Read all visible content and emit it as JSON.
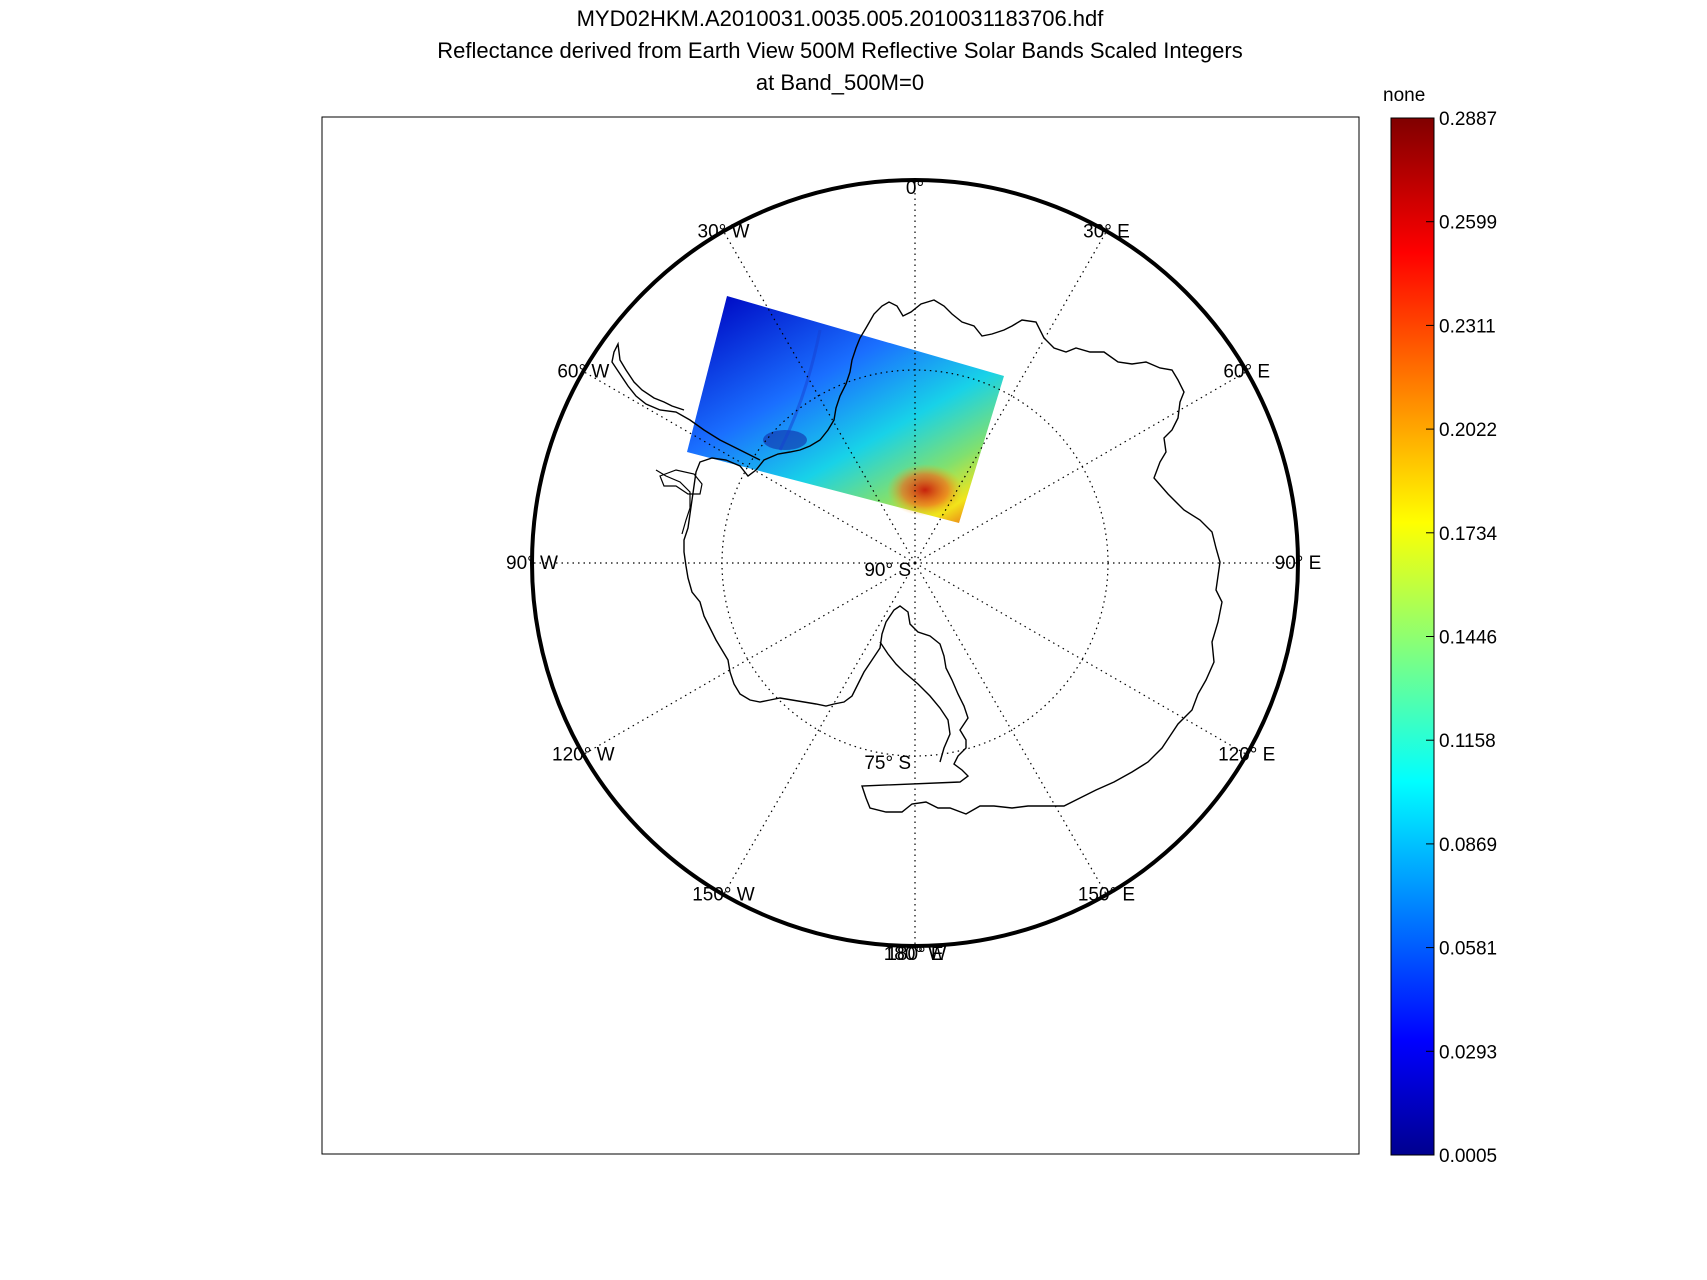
{
  "title": {
    "line1": "MYD02HKM.A2010031.0035.005.2010031183706.hdf",
    "line2": "Reflectance derived from Earth View 500M Reflective Solar Bands Scaled Integers",
    "line3": "at Band_500M=0"
  },
  "map": {
    "projection": "south polar stereographic",
    "meridian_labels": [
      {
        "lon": 0,
        "text": "0°"
      },
      {
        "lon": 30,
        "text": "30° E"
      },
      {
        "lon": 60,
        "text": "60° E"
      },
      {
        "lon": 90,
        "text": "90° E"
      },
      {
        "lon": 120,
        "text": "120° E"
      },
      {
        "lon": 150,
        "text": "150° E"
      },
      {
        "lon": 180,
        "text": "180° E"
      },
      {
        "lon": -180,
        "text": "180° W"
      },
      {
        "lon": -150,
        "text": "150° W"
      },
      {
        "lon": -120,
        "text": "120° W"
      },
      {
        "lon": -90,
        "text": "90° W"
      },
      {
        "lon": -60,
        "text": "60° W"
      },
      {
        "lon": -30,
        "text": "30° W"
      }
    ],
    "parallel_labels": [
      {
        "lat": -90,
        "text": "90° S"
      },
      {
        "lat": -75,
        "text": "75° S"
      }
    ],
    "data_swath": {
      "variable": "Reflectance",
      "min": 0.0005,
      "max": 0.2887
    }
  },
  "colorbar": {
    "units_label": "none",
    "ticks": [
      "0.2887",
      "0.2599",
      "0.2311",
      "0.2022",
      "0.1734",
      "0.1446",
      "0.1158",
      "0.0869",
      "0.0581",
      "0.0293",
      "0.0005"
    ],
    "colormap": "jet",
    "colors": [
      "#00008f",
      "#0000ff",
      "#00ffff",
      "#ffff00",
      "#ff0000",
      "#800000"
    ]
  }
}
